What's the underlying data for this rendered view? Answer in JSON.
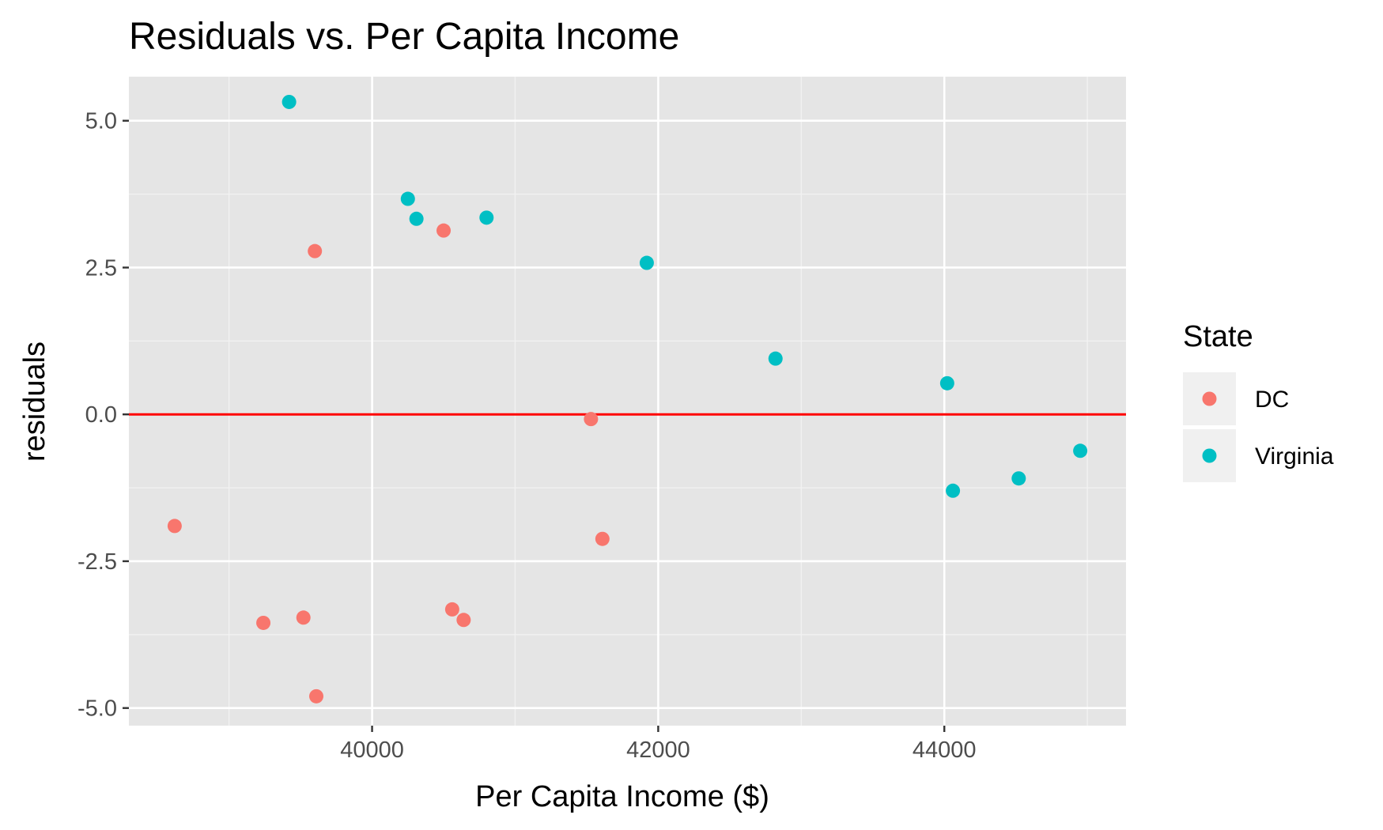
{
  "colors": {
    "panel_background": "#e5e5e5",
    "grid_major": "#ffffff",
    "grid_minor": "#f2f2f2",
    "zero_line": "#ff0000",
    "tick_text": "#4d4d4d",
    "legend_key_background": "#f0f0f0"
  },
  "chart_data": {
    "type": "scatter",
    "title": "Residuals vs. Per Capita Income",
    "xlabel": "Per Capita Income ($)",
    "ylabel": "residuals",
    "xlim": [
      38300,
      45270
    ],
    "ylim": [
      -5.3,
      5.75
    ],
    "x_ticks": [
      40000,
      42000,
      44000
    ],
    "x_tick_labels": [
      "40000",
      "42000",
      "44000"
    ],
    "x_minor_ticks": [
      39000,
      41000,
      43000,
      45000
    ],
    "y_ticks": [
      -5.0,
      -2.5,
      0.0,
      2.5,
      5.0
    ],
    "y_tick_labels": [
      "-5.0",
      "-2.5",
      "0.0",
      "2.5",
      "5.0"
    ],
    "y_minor_ticks": [
      -3.75,
      -1.25,
      1.25,
      3.75
    ],
    "grid": true,
    "hline": {
      "y": 0,
      "color": "#ff0000"
    },
    "legend": {
      "title": "State",
      "position": "right"
    },
    "series": [
      {
        "name": "DC",
        "color": "#f8766d",
        "points": [
          {
            "x": 38620,
            "y": -1.9
          },
          {
            "x": 39240,
            "y": -3.55
          },
          {
            "x": 39520,
            "y": -3.46
          },
          {
            "x": 39600,
            "y": 2.78
          },
          {
            "x": 39610,
            "y": -4.8
          },
          {
            "x": 40500,
            "y": 3.13
          },
          {
            "x": 40560,
            "y": -3.32
          },
          {
            "x": 40640,
            "y": -3.5
          },
          {
            "x": 41530,
            "y": -0.08
          },
          {
            "x": 41610,
            "y": -2.12
          }
        ]
      },
      {
        "name": "Virginia",
        "color": "#00bfc4",
        "points": [
          {
            "x": 39420,
            "y": 5.32
          },
          {
            "x": 40250,
            "y": 3.67
          },
          {
            "x": 40310,
            "y": 3.33
          },
          {
            "x": 40800,
            "y": 3.35
          },
          {
            "x": 41920,
            "y": 2.58
          },
          {
            "x": 42820,
            "y": 0.95
          },
          {
            "x": 44020,
            "y": 0.53
          },
          {
            "x": 44060,
            "y": -1.3
          },
          {
            "x": 44520,
            "y": -1.09
          },
          {
            "x": 44950,
            "y": -0.62
          }
        ]
      }
    ]
  }
}
